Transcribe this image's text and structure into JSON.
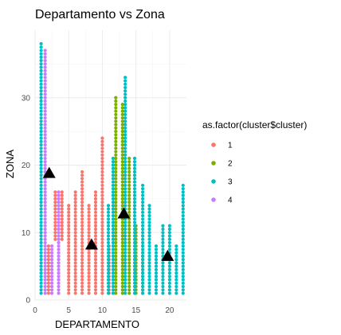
{
  "chart_data": {
    "type": "scatter",
    "title": "Departamento vs Zona",
    "xlabel": "DEPARTAMENTO",
    "ylabel": "ZONA",
    "xlim": [
      0,
      22.5
    ],
    "ylim": [
      0,
      40
    ],
    "x_ticks": [
      "0",
      "5",
      "10",
      "15",
      "20"
    ],
    "y_ticks": [
      "0",
      "10",
      "20",
      "30"
    ],
    "grid": true,
    "legend": {
      "title": "as.factor(cluster$cluster)",
      "position": "right",
      "entries": [
        {
          "label": "1",
          "color": "#F8766D"
        },
        {
          "label": "2",
          "color": "#7CAE00"
        },
        {
          "label": "3",
          "color": "#00BFC4"
        },
        {
          "label": "4",
          "color": "#C77CFF"
        }
      ]
    },
    "point_step": 0.5,
    "series": [
      {
        "cluster": "1",
        "color": "#F8766D",
        "columns": [
          {
            "x": 2,
            "y_min": 1,
            "y_max": 8
          },
          {
            "x": 3,
            "y_min": 9,
            "y_max": 16
          },
          {
            "x": 4,
            "y_min": 9,
            "y_max": 16
          },
          {
            "x": 5,
            "y_min": 1,
            "y_max": 14
          },
          {
            "x": 6,
            "y_min": 1,
            "y_max": 16
          },
          {
            "x": 7,
            "y_min": 1,
            "y_max": 19
          },
          {
            "x": 8,
            "y_min": 1,
            "y_max": 14
          },
          {
            "x": 9,
            "y_min": 1,
            "y_max": 16
          },
          {
            "x": 10,
            "y_min": 1,
            "y_max": 24
          },
          {
            "x": 11,
            "y_min": 1,
            "y_max": 8
          }
        ]
      },
      {
        "cluster": "2",
        "color": "#7CAE00",
        "columns": [
          {
            "x": 12,
            "y_min": 1,
            "y_max": 30
          },
          {
            "x": 13,
            "y_min": 1,
            "y_max": 29
          },
          {
            "x": 14,
            "y_min": 1,
            "y_max": 21
          },
          {
            "x": 15,
            "y_min": 1,
            "y_max": 11
          },
          {
            "x": 16,
            "y_min": 1,
            "y_max": 8
          }
        ]
      },
      {
        "cluster": "3",
        "color": "#00BFC4",
        "columns": [
          {
            "x": 0.9,
            "y_min": 1,
            "y_max": 38
          },
          {
            "x": 10.9,
            "y_min": 1,
            "y_max": 14
          },
          {
            "x": 11.6,
            "y_min": 1,
            "y_max": 21
          },
          {
            "x": 13.4,
            "y_min": 1,
            "y_max": 33
          },
          {
            "x": 14.8,
            "y_min": 1,
            "y_max": 21
          },
          {
            "x": 16,
            "y_min": 1,
            "y_max": 17
          },
          {
            "x": 17,
            "y_min": 1,
            "y_max": 14
          },
          {
            "x": 18,
            "y_min": 1,
            "y_max": 8
          },
          {
            "x": 19,
            "y_min": 1,
            "y_max": 11
          },
          {
            "x": 20,
            "y_min": 1,
            "y_max": 11
          },
          {
            "x": 21,
            "y_min": 1,
            "y_max": 8
          },
          {
            "x": 22,
            "y_min": 1,
            "y_max": 17
          }
        ]
      },
      {
        "cluster": "4",
        "color": "#C77CFF",
        "columns": [
          {
            "x": 1.5,
            "y_min": 1,
            "y_max": 37
          },
          {
            "x": 2.5,
            "y_min": 1,
            "y_max": 8
          },
          {
            "x": 3.5,
            "y_min": 1,
            "y_max": 16
          }
        ]
      }
    ],
    "centroids": [
      {
        "x": 2.1,
        "y": 18.8
      },
      {
        "x": 8.4,
        "y": 8.2
      },
      {
        "x": 13.2,
        "y": 12.8
      },
      {
        "x": 19.7,
        "y": 6.5
      }
    ]
  }
}
